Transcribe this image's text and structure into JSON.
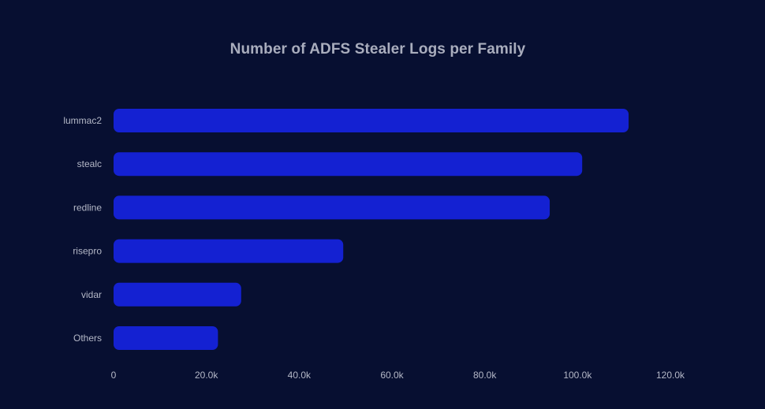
{
  "chart_data": {
    "type": "bar",
    "orientation": "horizontal",
    "title": "Number of ADFS Stealer Logs per Family",
    "xlabel": "",
    "ylabel": "",
    "categories": [
      "lummac2",
      "stealc",
      "redline",
      "risepro",
      "vidar",
      "Others"
    ],
    "values": [
      111000,
      101000,
      94000,
      49500,
      27500,
      22500
    ],
    "xlim": [
      0,
      120000
    ],
    "xticks": [
      0,
      20000,
      40000,
      60000,
      80000,
      100000,
      120000
    ],
    "xtick_labels": [
      "0",
      "20.0k",
      "40.0k",
      "60.0k",
      "80.0k",
      "100.0k",
      "120.0k"
    ],
    "grid": false,
    "legend": "none",
    "colors": {
      "background": "#070f31",
      "bar": "#1421d2",
      "text": "#b4b8c7",
      "title": "#a9adbd"
    }
  }
}
